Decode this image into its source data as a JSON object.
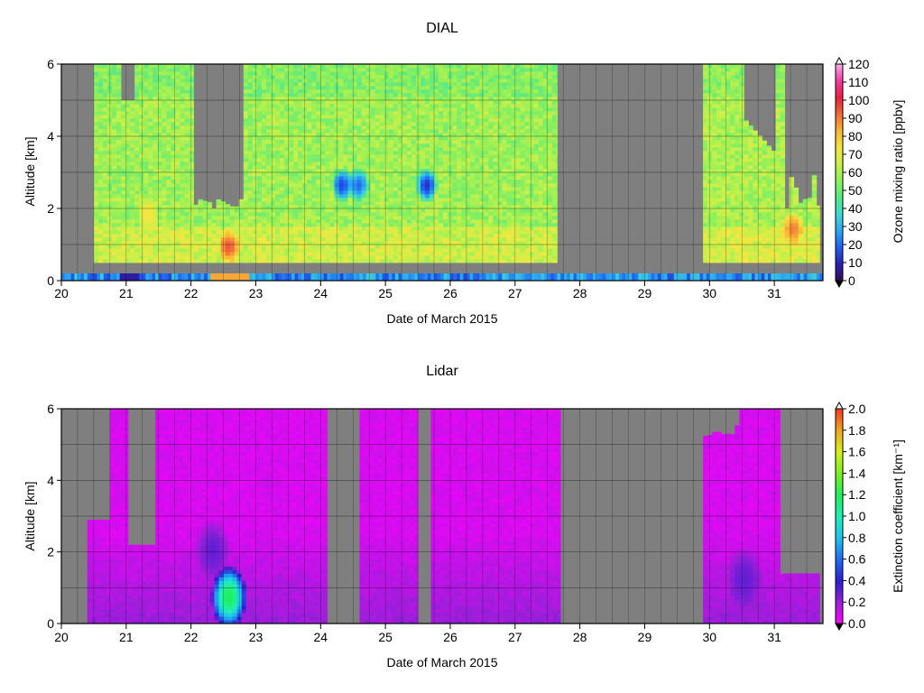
{
  "chart_data": [
    {
      "type": "heatmap",
      "title": "DIAL",
      "xlabel": "Date of March 2015",
      "ylabel": "Altitude [km]",
      "x_ticks": [
        "20",
        "21",
        "22",
        "23",
        "24",
        "25",
        "26",
        "27",
        "28",
        "29",
        "30",
        "31"
      ],
      "y_ticks": [
        "0",
        "2",
        "4",
        "6"
      ],
      "xlim": [
        20,
        31.75
      ],
      "ylim": [
        0,
        6
      ],
      "grid": true,
      "colorbar": {
        "label": "Ozone mixing ratio [ppbv]",
        "range": [
          0,
          120
        ],
        "ticks": [
          "0",
          "10",
          "20",
          "30",
          "40",
          "50",
          "60",
          "70",
          "80",
          "90",
          "100",
          "110",
          "120"
        ],
        "colors": [
          "#3a0a55",
          "#2a1fb0",
          "#1f5ff0",
          "#2aa8f2",
          "#3fd9d2",
          "#56e887",
          "#8df05a",
          "#c8f04a",
          "#f5e640",
          "#f7b735",
          "#f46b3c",
          "#e8203f",
          "#f13aa0",
          "#f8a8ea"
        ]
      },
      "no_data_color": "#7f7f7f",
      "data_segments": [
        {
          "start": 20.5,
          "end": 27.65,
          "bottom_km": 0.5,
          "top_km": 6,
          "base_ppbv": 58
        },
        {
          "start": 29.9,
          "end": 31.7,
          "bottom_km": 0.5,
          "top_km": 6,
          "base_ppbv": 60
        }
      ],
      "surface_strip": {
        "bottom_km": 0.0,
        "top_km": 0.2,
        "base_ppbv": 25
      },
      "features": [
        {
          "x": 22.55,
          "y": 0.9,
          "ppbv": 95
        },
        {
          "x": 24.3,
          "y": 2.6,
          "ppbv": 15
        },
        {
          "x": 24.55,
          "y": 2.6,
          "ppbv": 20
        },
        {
          "x": 25.6,
          "y": 2.6,
          "ppbv": 12
        },
        {
          "x": 21.3,
          "y": 1.8,
          "ppbv": 75
        },
        {
          "x": 31.25,
          "y": 1.4,
          "ppbv": 90
        }
      ]
    },
    {
      "type": "heatmap",
      "title": "Lidar",
      "xlabel": "Date of March 2015",
      "ylabel": "Altitude [km]",
      "x_ticks": [
        "20",
        "21",
        "22",
        "23",
        "24",
        "25",
        "26",
        "27",
        "28",
        "29",
        "30",
        "31"
      ],
      "y_ticks": [
        "0",
        "2",
        "4",
        "6"
      ],
      "xlim": [
        20,
        31.75
      ],
      "ylim": [
        0,
        6
      ],
      "grid": true,
      "colorbar": {
        "label": "Extinction coefficient [km⁻¹]",
        "range": [
          0,
          2
        ],
        "ticks": [
          "0.0",
          "0.2",
          "0.4",
          "0.6",
          "0.8",
          "1.0",
          "1.2",
          "1.4",
          "1.6",
          "1.8",
          "2.0"
        ],
        "colors": [
          "#ff00ff",
          "#9b1fd9",
          "#2b1fd0",
          "#1f6cf0",
          "#1fc3f0",
          "#1ff0b4",
          "#1ff05a",
          "#7cf01f",
          "#d4f01f",
          "#f0a81f",
          "#f03a1f"
        ]
      },
      "no_data_color": "#7f7f7f",
      "data_segments": [
        {
          "start": 20.4,
          "end": 24.1,
          "bottom_km": 0,
          "top_km": 6,
          "base_ext": 0.05
        },
        {
          "start": 24.6,
          "end": 25.5,
          "bottom_km": 0,
          "top_km": 6,
          "base_ext": 0.05
        },
        {
          "start": 25.7,
          "end": 27.7,
          "bottom_km": 0,
          "top_km": 6,
          "base_ext": 0.05
        },
        {
          "start": 29.9,
          "end": 31.7,
          "bottom_km": 0,
          "top_km": 6,
          "base_ext": 0.05
        }
      ],
      "features": [
        {
          "x": 22.55,
          "y": 0.7,
          "ext": 1.2
        },
        {
          "x": 22.3,
          "y": 2.0,
          "ext": 0.3
        },
        {
          "x": 30.5,
          "y": 1.2,
          "ext": 0.3
        }
      ]
    }
  ]
}
